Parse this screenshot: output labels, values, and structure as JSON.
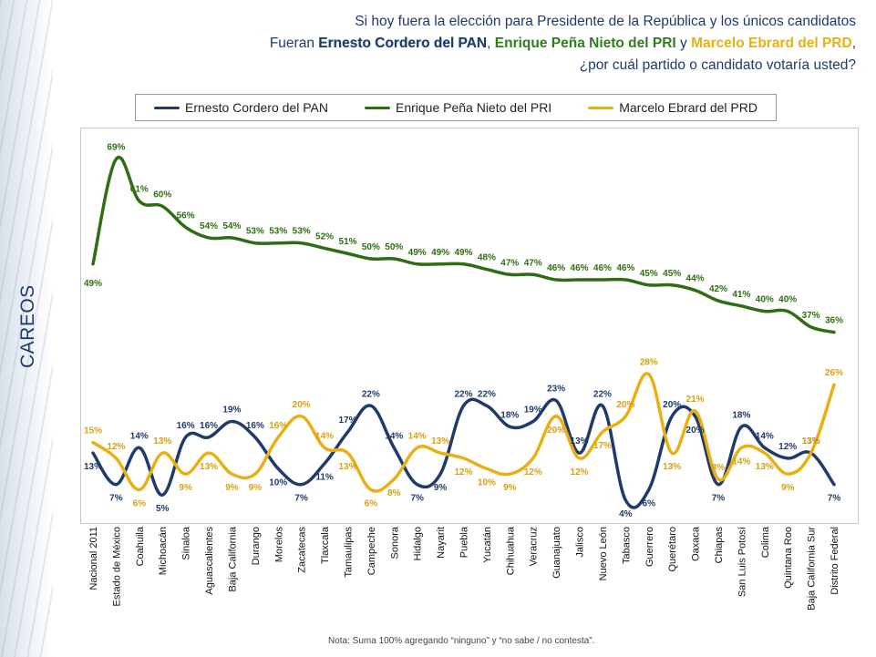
{
  "side_label": "CAREOS",
  "title": {
    "line1": "Si hoy fuera la elección para Presidente de la República y los únicos candidatos",
    "line2_prefix": "Fueran ",
    "cand1": "Ernesto Cordero del PAN",
    "sep1": ", ",
    "cand2": "Enrique Peña Nieto del PRI",
    "sep2": " y ",
    "cand3": "Marcelo Ebrard del PRD",
    "sep3": ",",
    "line3": "¿por cuál partido o candidato votaría usted?"
  },
  "note": "Nota: Suma 100%  agregando “ninguno” y “no sabe / no contesta”.",
  "colors": {
    "pan": "#1f3a6b",
    "pri": "#2e6e12",
    "prd": "#e8b012"
  },
  "chart_data": {
    "type": "line",
    "categories": [
      "Nacional 2011",
      "Estado de México",
      "Coahuila",
      "Michoacán",
      "Sinaloa",
      "Aguascalientes",
      "Baja California",
      "Durango",
      "Morelos",
      "Zacatecas",
      "Tlaxcala",
      "Tamaulipas",
      "Campeche",
      "Sonora",
      "Hidalgo",
      "Nayarit",
      "Puebla",
      "Yucatán",
      "Chihuahua",
      "Veracruz",
      "Guanajuato",
      "Jalisco",
      "Nuevo León",
      "Tabasco",
      "Guerrero",
      "Querétaro",
      "Oaxaca",
      "Chiapas",
      "San Luis Potosí",
      "Colima",
      "Quintana Roo",
      "Baja California Sur",
      "Distrito Federal"
    ],
    "series": [
      {
        "name": "Ernesto Cordero del PAN",
        "color": "#1f3a6b",
        "values": [
          13,
          7,
          14,
          5,
          16,
          16,
          19,
          16,
          10,
          7,
          11,
          17,
          22,
          14,
          7,
          9,
          22,
          22,
          18,
          19,
          23,
          13,
          22,
          4,
          6,
          20,
          20,
          7,
          18,
          14,
          12,
          13,
          7
        ]
      },
      {
        "name": "Enrique Peña Nieto del PRI",
        "color": "#2e6e12",
        "values": [
          49,
          69,
          61,
          60,
          56,
          54,
          54,
          53,
          53,
          53,
          52,
          51,
          50,
          50,
          49,
          49,
          49,
          48,
          47,
          47,
          46,
          46,
          46,
          46,
          45,
          45,
          44,
          42,
          41,
          40,
          40,
          37,
          36
        ]
      },
      {
        "name": "Marcelo Ebrard del PRD",
        "color": "#e8b012",
        "values": [
          15,
          12,
          6,
          13,
          9,
          13,
          9,
          9,
          16,
          20,
          14,
          13,
          6,
          8,
          14,
          13,
          12,
          10,
          9,
          12,
          20,
          12,
          17,
          20,
          28,
          13,
          21,
          8,
          14,
          13,
          9,
          13,
          26
        ]
      }
    ],
    "labels": {
      "pan": [
        "13%",
        "7%",
        "14%",
        "5%",
        "16%",
        "16%",
        "19%",
        "16%",
        "10%",
        "7%",
        "11%",
        "17%",
        "22%",
        "14%",
        "7%",
        "9%",
        "22%",
        "22%",
        "18%",
        "19%",
        "23%",
        "13%",
        "22%",
        "4%",
        "6%",
        "20%",
        "20%",
        "7%",
        "18%",
        "14%",
        "12%",
        "13%",
        "7%"
      ],
      "pri": [
        "49%",
        "69%",
        "61%",
        "60%",
        "56%",
        "54%",
        "54%",
        "53%",
        "53%",
        "53%",
        "52%",
        "51%",
        "50%",
        "50%",
        "49%",
        "49%",
        "49%",
        "48%",
        "47%",
        "47%",
        "46%",
        "46%",
        "46%",
        "46%",
        "45%",
        "45%",
        "44%",
        "42%",
        "41%",
        "40%",
        "40%",
        "37%",
        "36%"
      ],
      "prd": [
        "15%",
        "12%",
        "6%",
        "13%",
        "9%",
        "13%",
        "9%",
        "9%",
        "16%",
        "20%",
        "14%",
        "13%",
        "6%",
        "8%",
        "14%",
        "13%",
        "12%",
        "10%",
        "9%",
        "12%",
        "20%",
        "12%",
        "17%",
        "20%",
        "28%",
        "13%",
        "21%",
        "8%",
        "14%",
        "13%",
        "9%",
        "13%",
        "26%"
      ]
    },
    "ylim": [
      0,
      75
    ],
    "grid": false,
    "legend_position": "top"
  }
}
